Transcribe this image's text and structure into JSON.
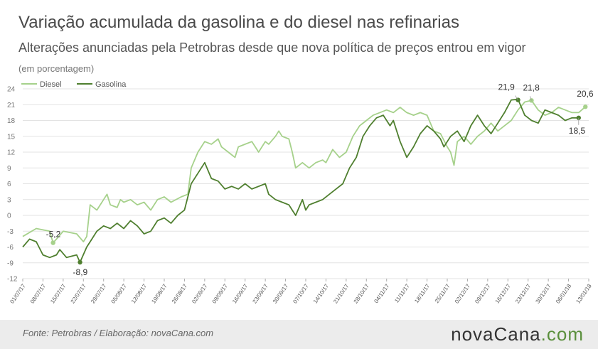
{
  "header": {
    "title": "Variação acumulada da gasolina e do diesel nas refinarias",
    "subtitle": "Alterações anunciadas pela Petrobras desde que nova política de preços entrou em vigor",
    "unit": "(em porcentagem)"
  },
  "footer": {
    "source": "Fonte:  Petrobras  / Elaboração:  novaCana.com",
    "logo_main": "novaCana",
    "logo_suffix": ".com"
  },
  "colors": {
    "diesel": "#a6d18b",
    "gasolina": "#4f7f2f",
    "grid": "#e3e3e3"
  },
  "chart_data": {
    "type": "line",
    "title": "Variação acumulada da gasolina e do diesel nas refinarias",
    "subtitle": "Alterações anunciadas pela Petrobras desde que nova política de preços entrou em vigor",
    "ylabel": "(em porcentagem)",
    "ylim": [
      -12,
      24
    ],
    "yticks": [
      -12,
      -9,
      -6,
      -3,
      0,
      3,
      6,
      9,
      12,
      15,
      18,
      21,
      24
    ],
    "grid": true,
    "legend_position": "top-left",
    "x_tick_labels": [
      "01/07/17",
      "08/07/17",
      "15/07/17",
      "22/07/17",
      "29/07/17",
      "05/08/17",
      "12/08/17",
      "19/08/17",
      "26/08/17",
      "02/09/17",
      "09/09/17",
      "16/09/17",
      "23/09/17",
      "30/09/17",
      "07/10/17",
      "14/10/17",
      "21/10/17",
      "28/10/17",
      "04/11/17",
      "11/11/17",
      "18/11/17",
      "25/11/17",
      "02/12/17",
      "09/12/17",
      "16/12/17",
      "23/12/17",
      "30/12/17",
      "06/01/18",
      "13/01/18"
    ],
    "series": [
      {
        "name": "Diesel",
        "values": [
          [
            0,
            -4
          ],
          [
            4,
            -2.5
          ],
          [
            8,
            -3
          ],
          [
            9,
            -5.2
          ],
          [
            10,
            -4.5
          ],
          [
            12,
            -3
          ],
          [
            16,
            -3.5
          ],
          [
            18,
            -5
          ],
          [
            19,
            -4
          ],
          [
            20,
            2
          ],
          [
            22,
            1
          ],
          [
            24,
            3
          ],
          [
            25,
            4
          ],
          [
            26,
            2
          ],
          [
            28,
            1.5
          ],
          [
            29,
            3
          ],
          [
            30,
            2.5
          ],
          [
            32,
            3
          ],
          [
            34,
            2
          ],
          [
            36,
            2.5
          ],
          [
            38,
            1
          ],
          [
            40,
            3
          ],
          [
            42,
            3.5
          ],
          [
            44,
            2.5
          ],
          [
            47,
            3.5
          ],
          [
            49,
            4
          ],
          [
            50,
            9
          ],
          [
            52,
            12
          ],
          [
            54,
            14
          ],
          [
            56,
            13.5
          ],
          [
            58,
            14.5
          ],
          [
            59,
            13
          ],
          [
            61,
            12
          ],
          [
            63,
            11
          ],
          [
            64,
            13
          ],
          [
            66,
            13.5
          ],
          [
            68,
            14
          ],
          [
            70,
            12
          ],
          [
            72,
            14
          ],
          [
            73,
            13.5
          ],
          [
            75,
            15
          ],
          [
            76,
            16
          ],
          [
            77,
            15
          ],
          [
            79,
            14.5
          ],
          [
            80,
            12
          ],
          [
            81,
            9
          ],
          [
            83,
            10
          ],
          [
            85,
            9
          ],
          [
            87,
            10
          ],
          [
            89,
            10.5
          ],
          [
            90,
            10
          ],
          [
            92,
            12.5
          ],
          [
            94,
            11
          ],
          [
            96,
            12
          ],
          [
            98,
            15
          ],
          [
            100,
            17
          ],
          [
            102,
            18
          ],
          [
            104,
            19
          ],
          [
            106,
            19.5
          ],
          [
            108,
            20
          ],
          [
            110,
            19.5
          ],
          [
            112,
            20.5
          ],
          [
            114,
            19.5
          ],
          [
            116,
            19
          ],
          [
            118,
            19.5
          ],
          [
            120,
            19
          ],
          [
            122,
            16
          ],
          [
            124,
            15.5
          ],
          [
            126,
            13
          ],
          [
            127,
            12
          ],
          [
            128,
            9.5
          ],
          [
            129,
            14
          ],
          [
            131,
            15
          ],
          [
            133,
            13.5
          ],
          [
            135,
            15
          ],
          [
            137,
            16
          ],
          [
            139,
            17.5
          ],
          [
            141,
            16
          ],
          [
            143,
            17
          ],
          [
            145,
            18
          ],
          [
            147,
            20
          ],
          [
            149,
            21.5
          ],
          [
            151,
            21.8
          ],
          [
            153,
            20
          ],
          [
            155,
            19
          ],
          [
            157,
            19.5
          ],
          [
            159,
            20.5
          ],
          [
            161,
            20
          ],
          [
            163,
            19.5
          ],
          [
            165,
            19.5
          ],
          [
            167,
            20.6
          ]
        ]
      },
      {
        "name": "Gasolina",
        "values": [
          [
            0,
            -6
          ],
          [
            2,
            -4.5
          ],
          [
            4,
            -5
          ],
          [
            6,
            -7.5
          ],
          [
            8,
            -8
          ],
          [
            10,
            -7.5
          ],
          [
            11,
            -6.5
          ],
          [
            13,
            -8
          ],
          [
            16,
            -7.5
          ],
          [
            17,
            -8.9
          ],
          [
            19,
            -6
          ],
          [
            20,
            -5
          ],
          [
            22,
            -3
          ],
          [
            24,
            -2
          ],
          [
            26,
            -2.5
          ],
          [
            28,
            -1.5
          ],
          [
            30,
            -2.5
          ],
          [
            32,
            -1
          ],
          [
            34,
            -2
          ],
          [
            36,
            -3.5
          ],
          [
            38,
            -3
          ],
          [
            40,
            -1
          ],
          [
            42,
            -0.5
          ],
          [
            44,
            -1.5
          ],
          [
            46,
            0
          ],
          [
            48,
            1
          ],
          [
            50,
            6
          ],
          [
            52,
            8
          ],
          [
            54,
            10
          ],
          [
            56,
            7
          ],
          [
            58,
            6.5
          ],
          [
            60,
            5
          ],
          [
            62,
            5.5
          ],
          [
            64,
            5
          ],
          [
            66,
            6
          ],
          [
            68,
            5
          ],
          [
            70,
            5.5
          ],
          [
            72,
            6
          ],
          [
            73,
            4
          ],
          [
            75,
            3
          ],
          [
            77,
            2.5
          ],
          [
            79,
            2
          ],
          [
            80,
            1
          ],
          [
            81,
            0
          ],
          [
            83,
            3
          ],
          [
            84,
            1
          ],
          [
            85,
            2
          ],
          [
            87,
            2.5
          ],
          [
            89,
            3
          ],
          [
            91,
            4
          ],
          [
            93,
            5
          ],
          [
            95,
            6
          ],
          [
            97,
            9
          ],
          [
            99,
            11
          ],
          [
            101,
            15
          ],
          [
            103,
            17
          ],
          [
            105,
            18.5
          ],
          [
            107,
            19
          ],
          [
            109,
            17
          ],
          [
            110,
            18
          ],
          [
            112,
            14
          ],
          [
            114,
            11
          ],
          [
            116,
            13
          ],
          [
            118,
            15.5
          ],
          [
            120,
            17
          ],
          [
            122,
            16
          ],
          [
            124,
            14.5
          ],
          [
            125,
            13
          ],
          [
            127,
            15
          ],
          [
            129,
            16
          ],
          [
            131,
            14
          ],
          [
            133,
            17
          ],
          [
            135,
            19
          ],
          [
            137,
            17
          ],
          [
            139,
            15.5
          ],
          [
            141,
            17.5
          ],
          [
            143,
            19.5
          ],
          [
            145,
            21.9
          ],
          [
            147,
            22
          ],
          [
            149,
            19
          ],
          [
            151,
            18
          ],
          [
            153,
            17.5
          ],
          [
            155,
            20
          ],
          [
            157,
            19.5
          ],
          [
            159,
            19
          ],
          [
            161,
            18
          ],
          [
            163,
            18.5
          ],
          [
            165,
            18.5
          ]
        ]
      }
    ],
    "annotations": [
      {
        "label": "-5,2",
        "series": "Diesel",
        "x": 9,
        "y": -5.2
      },
      {
        "label": "-8,9",
        "series": "Gasolina",
        "x": 17,
        "y": -8.9
      },
      {
        "label": "21,9",
        "series": "Gasolina",
        "x": 147,
        "y": 21.9
      },
      {
        "label": "21,8",
        "series": "Diesel",
        "x": 151,
        "y": 21.8
      },
      {
        "label": "20,6",
        "series": "Diesel",
        "x": 167,
        "y": 20.6
      },
      {
        "label": "18,5",
        "series": "Gasolina",
        "x": 165,
        "y": 18.5
      }
    ]
  }
}
